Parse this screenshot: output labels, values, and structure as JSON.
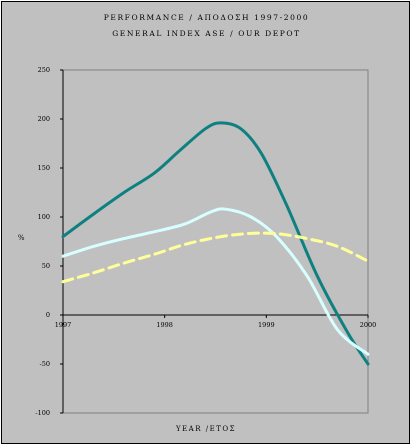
{
  "chart_data": {
    "type": "line",
    "title": "PERFORMANCE / ΑΠΟΔΟΣΗ 1997-2000",
    "subtitle": "GENERAL INDEX ASE / OUR DEPOT",
    "xlabel": "YEAR /ΕΤΟΣ",
    "ylabel": "%",
    "xlim": [
      1997,
      2000
    ],
    "ylim": [
      -100,
      250
    ],
    "x_ticks": [
      1997,
      1998,
      1999,
      2000
    ],
    "y_ticks": [
      -100,
      -50,
      0,
      50,
      100,
      150,
      200,
      250
    ],
    "x_tick_labels": [
      "1997",
      "1998",
      "1999",
      "2000"
    ],
    "y_tick_labels": [
      "-100",
      "-50",
      "0",
      "50",
      "100",
      "150",
      "200",
      "250"
    ],
    "grid": false,
    "series": [
      {
        "color": "#0f8080",
        "style": "solid",
        "x": [
          1997.0,
          1997.3,
          1997.6,
          1997.9,
          1998.15,
          1998.4,
          1998.55,
          1998.75,
          1998.95,
          1999.2,
          1999.5,
          1999.8,
          2000.0
        ],
        "values": [
          80,
          103,
          125,
          145,
          168,
          190,
          196,
          190,
          165,
          112,
          40,
          -18,
          -50
        ]
      },
      {
        "color": "#d8ffff",
        "style": "solid",
        "x": [
          1997.0,
          1997.3,
          1997.6,
          1997.9,
          1998.2,
          1998.45,
          1998.6,
          1998.85,
          1999.1,
          1999.4,
          1999.7,
          2000.0
        ],
        "values": [
          60,
          70,
          78,
          85,
          93,
          105,
          108,
          100,
          80,
          40,
          -15,
          -40
        ]
      },
      {
        "color": "#ffff99",
        "style": "dashed",
        "x": [
          1997.0,
          1997.3,
          1997.6,
          1997.9,
          1998.2,
          1998.5,
          1998.8,
          1999.1,
          1999.4,
          1999.7,
          2000.0
        ],
        "values": [
          34,
          43,
          53,
          62,
          72,
          79,
          83,
          83,
          78,
          70,
          55
        ]
      }
    ]
  },
  "style": {
    "background": "#c0c0c0",
    "axis_color": "#808080"
  }
}
